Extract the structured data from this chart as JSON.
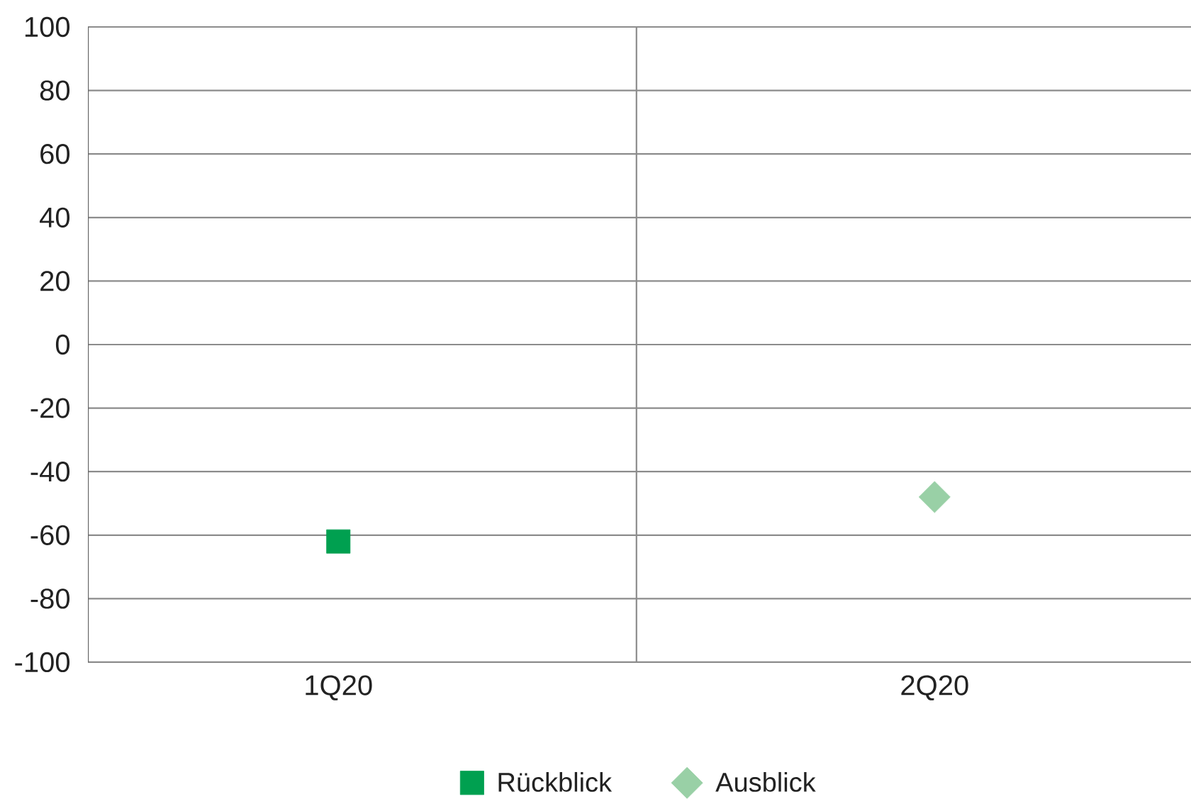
{
  "chart_data": {
    "type": "scatter",
    "categories": [
      "1Q20",
      "2Q20"
    ],
    "series": [
      {
        "name": "Rückblick",
        "color": "#00a050",
        "marker": "square",
        "values": [
          -62,
          null
        ]
      },
      {
        "name": "Ausblick",
        "color": "#99d0a6",
        "marker": "diamond",
        "values": [
          null,
          -48
        ]
      }
    ],
    "ylim": [
      -100,
      100
    ],
    "yticks": [
      -100,
      -80,
      -60,
      -40,
      -20,
      0,
      20,
      40,
      60,
      80,
      100
    ],
    "grid": true,
    "legend": "bottom"
  }
}
